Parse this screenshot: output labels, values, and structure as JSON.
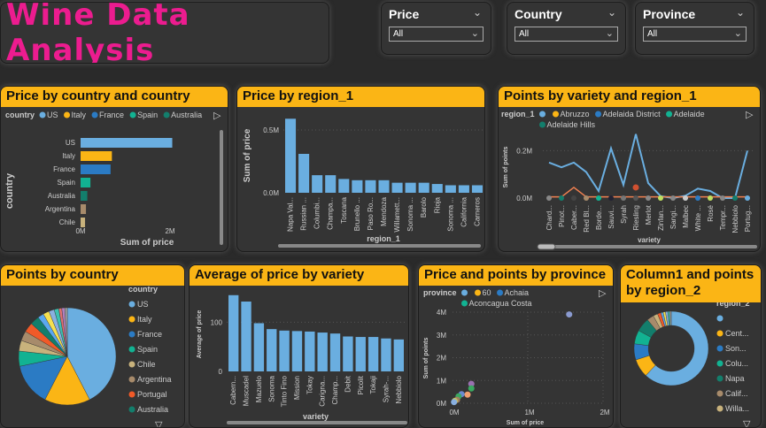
{
  "title": "Wine Data Analysis",
  "slicers": [
    {
      "label": "Price",
      "value": "All"
    },
    {
      "label": "Country",
      "value": "All"
    },
    {
      "label": "Province",
      "value": "All"
    }
  ],
  "colors": {
    "accent": "#fbb515",
    "title": "#ec1c8f",
    "bar": "#6aaee0"
  },
  "chart_data": [
    {
      "id": "c1",
      "type": "hbar",
      "title": "Price by country and country",
      "legend_title": "country",
      "legend": [
        "US",
        "Italy",
        "France",
        "Spain",
        "Australia"
      ],
      "categories": [
        "US",
        "Italy",
        "France",
        "Spain",
        "Australia",
        "Argentina",
        "Chile"
      ],
      "values": [
        2.05,
        0.7,
        0.67,
        0.22,
        0.15,
        0.12,
        0.1
      ],
      "colors": [
        "#6aaee0",
        "#fbb515",
        "#2b7bc4",
        "#12b292",
        "#137e6c",
        "#a78b6b",
        "#c8b27c"
      ],
      "xlabel": "Sum of price",
      "ylabel": "country",
      "xticks": [
        "0M",
        "2M"
      ],
      "xlim": [
        0,
        2.1
      ],
      "unit": "M"
    },
    {
      "id": "c2",
      "type": "bar",
      "title": "Price by region_1",
      "categories": [
        "Napa Val...",
        "Russian ...",
        "Columbi...",
        "Champa...",
        "Toscana",
        "Brunello ...",
        "Paso Ro...",
        "Mendoza",
        "Willamett...",
        "Sonoma ...",
        "Barolo",
        "Rioja",
        "Sonoma ...",
        "California",
        "Carneros"
      ],
      "values": [
        0.59,
        0.31,
        0.14,
        0.14,
        0.11,
        0.1,
        0.1,
        0.1,
        0.08,
        0.08,
        0.08,
        0.07,
        0.06,
        0.06,
        0.06
      ],
      "xlabel": "region_1",
      "ylabel": "Sum of price",
      "yticks": [
        [
          "0.0M",
          0
        ],
        [
          "0.5M",
          0.5
        ]
      ],
      "ylim": [
        0,
        0.62
      ]
    },
    {
      "id": "c3",
      "type": "line",
      "title": "Points by variety and region_1",
      "legend_title": "region_1",
      "legend": [
        "",
        "Abruzzo",
        "Adelaida District",
        "Adelaide",
        "Adelaide Hills"
      ],
      "legend_colors": [
        "#6aaee0",
        "#fbb515",
        "#2b7bc4",
        "#12b292",
        "#137e6c"
      ],
      "categories": [
        "Chard...",
        "Pinot...",
        "Caber...",
        "Red Bl...",
        "Borde...",
        "Sauvi...",
        "Syrah",
        "Riesling",
        "Merlot",
        "Zinfan...",
        "Sangi...",
        "Malbec",
        "White ...",
        "Rosé",
        "Tempr...",
        "Nebbiolo",
        "Portug..."
      ],
      "series": [
        {
          "name": "",
          "values": [
            0.15,
            0.13,
            0.15,
            0.11,
            0.03,
            0.21,
            0.056,
            0.27,
            0.063,
            0.008,
            0,
            0.01,
            0.04,
            0.03,
            0,
            0,
            0.2
          ]
        },
        {
          "name": "Abruzzo",
          "values": [
            0.005,
            0.005,
            0.045,
            0.005,
            0.005,
            0.005,
            0.005,
            0.005,
            0.005,
            0.005,
            0.005,
            0.005,
            0.005,
            0.005,
            0.005,
            0.005,
            0.005
          ]
        }
      ],
      "xlabel": "variety",
      "ylabel": "Sum of points",
      "yticks": [
        [
          "0.0M",
          0
        ],
        [
          "0.2M",
          0.2
        ]
      ],
      "ylim": [
        0,
        0.28
      ]
    },
    {
      "id": "c4",
      "type": "pie",
      "title": "Points by country",
      "legend_title": "country",
      "legend": [
        "US",
        "Italy",
        "France",
        "Spain",
        "Chile",
        "Argentina",
        "Portugal",
        "Australia"
      ],
      "values": [
        42,
        15,
        14,
        5,
        3.5,
        3.2,
        3.2,
        3,
        2,
        2,
        1.8,
        1.5,
        1,
        1,
        0.8
      ],
      "colors": [
        "#6aaee0",
        "#fbb515",
        "#2b7bc4",
        "#12b292",
        "#c8b27c",
        "#a78b6b",
        "#f05a28",
        "#137e6c",
        "#5aa8f0",
        "#f5e050",
        "#8ab0e0",
        "#3cc0b0",
        "#e07070",
        "#b080c0",
        "#a0a0a0"
      ]
    },
    {
      "id": "c5",
      "type": "bar",
      "title": "Average of price by variety",
      "categories": [
        "Cabern...",
        "Muscadel",
        "Mazuelo",
        "Sonoma",
        "Tinto Fino",
        "Mission",
        "Tokay",
        "Carigna...",
        "Champ...",
        "Debit",
        "Picolit",
        "Tokaji",
        "Syrah-...",
        "Nebbiolo"
      ],
      "values": [
        155,
        142,
        98,
        86,
        83,
        82,
        81,
        79,
        77,
        71,
        70,
        70,
        67,
        65
      ],
      "xlabel": "variety",
      "ylabel": "Average of price",
      "yticks": [
        [
          "0",
          0
        ],
        [
          "100",
          100
        ]
      ],
      "ylim": [
        0,
        160
      ]
    },
    {
      "id": "c6",
      "type": "scatter",
      "title": "Price and points by province",
      "legend_title": "province",
      "legend": [
        "",
        "60",
        "Achaia",
        "Aconcagua Costa"
      ],
      "legend_colors": [
        "#6aaee0",
        "#fbb515",
        "#2b7bc4",
        "#12b292"
      ],
      "points": [
        [
          1.55,
          3.9,
          "#8a9ad0"
        ],
        [
          0.25,
          0.85,
          "#9a70b0"
        ],
        [
          0.25,
          0.65,
          "#3aa860"
        ],
        [
          0.2,
          0.38,
          "#f0a070"
        ],
        [
          0.12,
          0.4,
          "#6a8ad0"
        ],
        [
          0.08,
          0.3,
          "#3aa860"
        ],
        [
          0.06,
          0.15,
          "#a08060"
        ],
        [
          0.03,
          0.1,
          "#c0c060"
        ],
        [
          0.02,
          0.05,
          "#8ab0e0"
        ]
      ],
      "xlabel": "Sum of price",
      "ylabel": "Sum of points",
      "xticks": [
        [
          "0M",
          0
        ],
        [
          "1M",
          1
        ],
        [
          "2M",
          2
        ]
      ],
      "yticks": [
        [
          "0M",
          0
        ],
        [
          "1M",
          1
        ],
        [
          "2M",
          2
        ],
        [
          "3M",
          3
        ],
        [
          "4M",
          4
        ]
      ],
      "xlim": [
        0,
        2
      ],
      "ylim": [
        0,
        4
      ]
    },
    {
      "id": "c7",
      "type": "donut",
      "title": "Column1 and points by region_2",
      "legend_title": "region_2",
      "legend": [
        "",
        "Cent...",
        "Son...",
        "Colu...",
        "Napa",
        "Calif...",
        "Willa..."
      ],
      "values": [
        62,
        8,
        7,
        6,
        6,
        3,
        2,
        1.5,
        1,
        1,
        1,
        0.8,
        0.7
      ],
      "colors": [
        "#6aaee0",
        "#fbb515",
        "#2b7bc4",
        "#12b292",
        "#137e6c",
        "#a78b6b",
        "#c8b27c",
        "#f05a28",
        "#5aa8f0",
        "#f5e050",
        "#8ab0e0",
        "#3cc0b0",
        "#a0a0a0"
      ]
    }
  ]
}
